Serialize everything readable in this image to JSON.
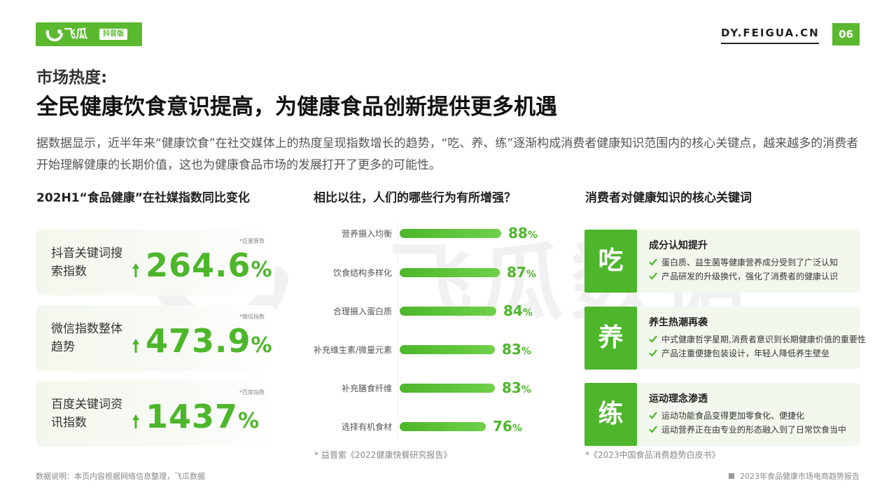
{
  "logo": {
    "brand": "飞瓜",
    "tag": "抖音版"
  },
  "site": "DY.FEIGUA.CN",
  "page_number": "06",
  "kicker": "市场热度:",
  "headline": "全民健康饮食意识提高，为健康食品创新提供更多机遇",
  "intro": "据数据显示，近半年来“健康饮食”在社交媒体上的热度呈现指数增长的趋势，“吃、养、练”逐渐构成消费者健康知识范围内的核心关键点，越来越多的消费者开始理解健康的长期价值，这也为健康食品市场的发展打开了更多的可能性。",
  "watermark": "飞瓜数据",
  "left": {
    "title": "202H1“食品健康”在社媒指数同比变化",
    "cards": [
      {
        "label": "抖音关键词搜索指数",
        "source": "*巨量算数",
        "value": "264.6",
        "unit": "%"
      },
      {
        "label": "微信指数整体趋势",
        "source": "*微信指数",
        "value": "473.9",
        "unit": "%"
      },
      {
        "label": "百度关键词资讯指数",
        "source": "*百度指数",
        "value": "1437",
        "unit": "%"
      }
    ]
  },
  "middle": {
    "title": "相比以往，人们的哪些行为有所增强？",
    "footnote": "* 益普索《2022健康快餐研究报告》"
  },
  "chart_data": {
    "type": "bar",
    "orientation": "horizontal",
    "categories": [
      "营养摄入均衡",
      "饮食结构多样化",
      "合理摄入蛋白质",
      "补充维生素/微量元素",
      "补充膳食纤维",
      "选择有机食材"
    ],
    "values": [
      88,
      87,
      84,
      83,
      83,
      76
    ],
    "unit": "%",
    "title": "相比以往，人们的哪些行为有所增强？",
    "xlabel": "",
    "ylabel": "",
    "grid": false,
    "colors": {
      "bar": "#4db62a"
    }
  },
  "right": {
    "title": "消费者对健康知识的核心关键词",
    "footnote": "*《2023中国食品消费趋势白皮书》",
    "cards": [
      {
        "char": "吃",
        "title": "成分认知提升",
        "items": [
          "蛋白质、益生菌等健康营养成分受到了广泛认知",
          "产品研发的升级换代，强化了消费者的健康认识"
        ]
      },
      {
        "char": "养",
        "title": "养生热潮再袭",
        "items": [
          "中式健康哲学星期,消费者意识到长期健康价值的重要性",
          "产品注重便捷包装设计，年轻人降低养生壁垒"
        ]
      },
      {
        "char": "练",
        "title": "运动理念渗透",
        "items": [
          "运动功能食品变得更加零食化、便捷化",
          "运动营养正在由专业的形态融入到了日常饮食当中"
        ]
      }
    ]
  },
  "footer": {
    "note": "数据说明：本页内容根据网络信息整理，飞瓜数据",
    "report": "2023年食品健康市场电商趋势报告"
  },
  "colors": {
    "accent": "#4db62a",
    "brand": "#5bb92f"
  }
}
